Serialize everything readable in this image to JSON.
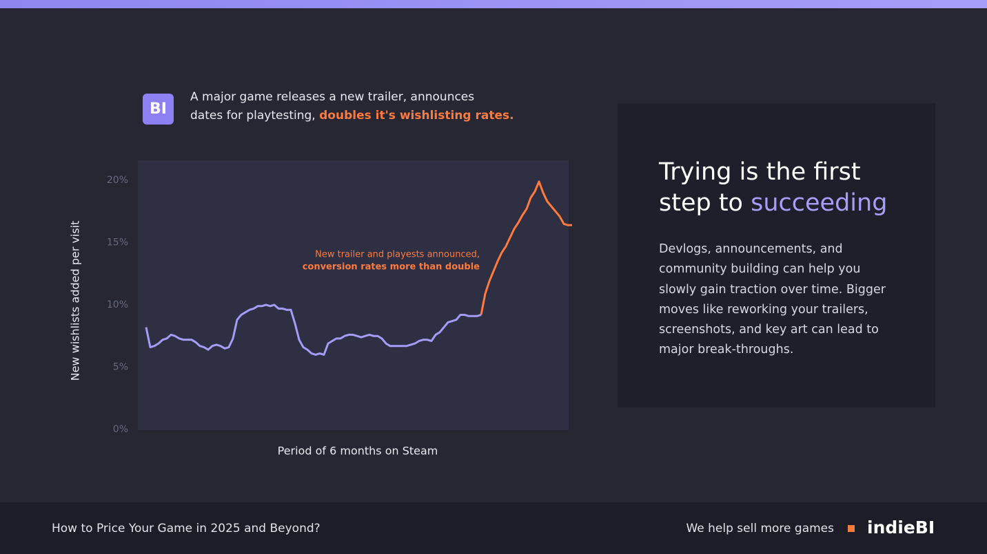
{
  "header": {
    "logo": "BI",
    "lines": [
      "A major game releases a new trailer, announces",
      "dates for playtesting,"
    ],
    "highlight": "doubles it's wishlisting rates."
  },
  "chart_data": {
    "type": "line",
    "ylabel": "New wishlists added per visit",
    "xlabel": "Period of 6 months on Steam",
    "ylim": [
      0,
      21.6
    ],
    "yticks": [
      {
        "value": 0,
        "label": "0%"
      },
      {
        "value": 5,
        "label": "5%"
      },
      {
        "value": 10,
        "label": "10%"
      },
      {
        "value": 15,
        "label": "15%"
      },
      {
        "value": 20,
        "label": "20%"
      }
    ],
    "annotation": [
      "New trailer and playests announced,",
      "conversion rates more than double"
    ],
    "series": [
      {
        "color": "#a49cf7",
        "values": [
          8.2,
          6.6,
          6.7,
          6.9,
          7.2,
          7.3,
          7.6,
          7.5,
          7.3,
          7.2,
          7.2,
          7.2,
          7.0,
          6.7,
          6.6,
          6.4,
          6.7,
          6.8,
          6.7,
          6.5,
          6.6,
          7.3,
          8.8,
          9.2,
          9.4,
          9.6,
          9.7,
          9.9,
          9.9,
          10.0,
          9.9,
          10.0,
          9.7,
          9.7,
          9.6,
          9.6,
          8.5,
          7.2,
          6.6,
          6.4,
          6.1,
          6.0,
          6.1,
          6.0,
          6.9,
          7.1,
          7.3,
          7.3,
          7.5,
          7.6,
          7.6,
          7.5,
          7.4,
          7.5,
          7.6,
          7.5,
          7.5,
          7.3,
          6.9,
          6.7,
          6.7,
          6.7,
          6.7,
          6.7,
          6.8,
          6.9,
          7.1,
          7.2,
          7.2,
          7.1,
          7.6,
          7.8,
          8.2,
          8.6,
          8.7,
          8.8,
          9.2,
          9.2,
          9.1,
          9.1,
          9.1,
          9.2,
          null,
          null,
          null,
          null,
          null,
          null,
          null,
          null,
          null,
          null,
          null,
          null,
          null,
          null,
          null,
          null,
          null,
          null,
          null,
          null,
          null,
          null
        ]
      },
      {
        "color": "#ff7a3d",
        "values": [
          null,
          null,
          null,
          null,
          null,
          null,
          null,
          null,
          null,
          null,
          null,
          null,
          null,
          null,
          null,
          null,
          null,
          null,
          null,
          null,
          null,
          null,
          null,
          null,
          null,
          null,
          null,
          null,
          null,
          null,
          null,
          null,
          null,
          null,
          null,
          null,
          null,
          null,
          null,
          null,
          null,
          null,
          null,
          null,
          null,
          null,
          null,
          null,
          null,
          null,
          null,
          null,
          null,
          null,
          null,
          null,
          null,
          null,
          null,
          null,
          null,
          null,
          null,
          null,
          null,
          null,
          null,
          null,
          null,
          null,
          null,
          null,
          null,
          null,
          null,
          null,
          null,
          null,
          null,
          null,
          null,
          9.2,
          10.9,
          11.9,
          12.7,
          13.5,
          14.2,
          14.7,
          15.4,
          16.1,
          16.6,
          17.2,
          17.7,
          18.6,
          19.1,
          19.9,
          19.0,
          18.3,
          17.9,
          17.5,
          17.1,
          16.5,
          16.4,
          16.4
        ]
      }
    ]
  },
  "card": {
    "title": [
      "Trying is the first",
      "step to"
    ],
    "title_highlight": "succeeding",
    "body": [
      "Devlogs, announcements, and",
      "community building can help you",
      "slowly gain traction over time. Bigger",
      "moves like reworking your trailers,",
      "screenshots, and key art can lead to",
      "major break-throughs."
    ]
  },
  "footer": {
    "title": "How to Price Your Game in 2025 and Beyond?",
    "tagline": "We help sell more games",
    "brand": "indieBI"
  }
}
